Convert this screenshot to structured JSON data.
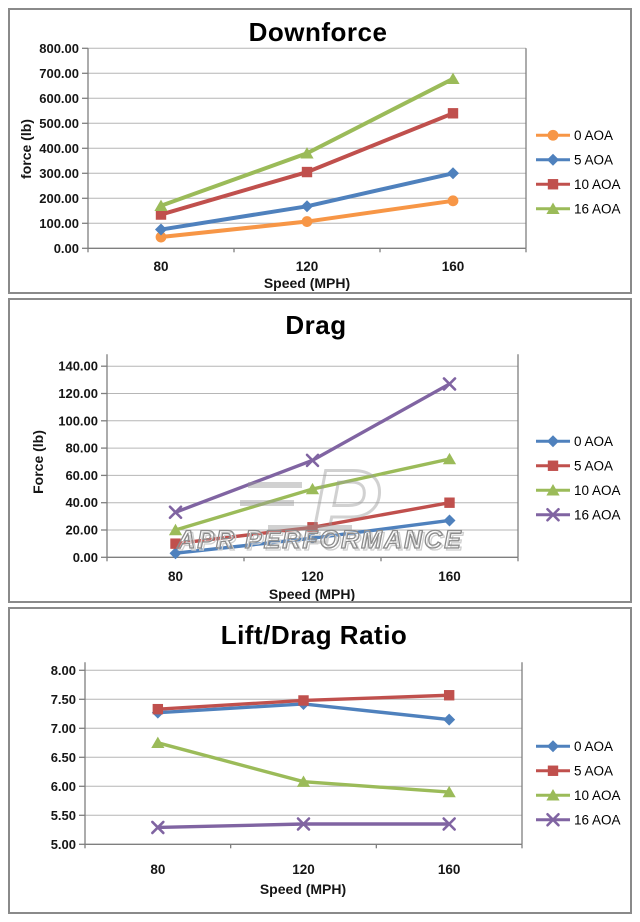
{
  "chart_data": [
    {
      "type": "line",
      "title": "Downforce",
      "ylabel": "force (lb)",
      "xlabel": "Speed (MPH)",
      "categories": [
        "80",
        "120",
        "160"
      ],
      "y_min": 0,
      "y_max": 800,
      "y_step": 100,
      "y_ticks": [
        "0.00",
        "100.00",
        "200.00",
        "300.00",
        "400.00",
        "500.00",
        "600.00",
        "700.00",
        "800.00"
      ],
      "grid": true,
      "legend_position": "right",
      "series": [
        {
          "name": "0 AOA",
          "color": "#F79646",
          "marker": "circle",
          "values": [
            45,
            107,
            190
          ]
        },
        {
          "name": "5 AOA",
          "color": "#4F81BD",
          "marker": "diamond",
          "values": [
            75,
            168,
            300
          ]
        },
        {
          "name": "10 AOA",
          "color": "#C0504D",
          "marker": "square",
          "values": [
            135,
            305,
            540
          ]
        },
        {
          "name": "16 AOA",
          "color": "#9BBB59",
          "marker": "triangle",
          "values": [
            170,
            380,
            678
          ]
        }
      ]
    },
    {
      "type": "line",
      "title": "Drag",
      "ylabel": "Force (lb)",
      "xlabel": "Speed (MPH)",
      "watermark": "APR PERFORMANCE",
      "categories": [
        "80",
        "120",
        "160"
      ],
      "y_min": 0,
      "y_max": 140,
      "y_step": 20,
      "y_ticks": [
        "0.00",
        "20.00",
        "40.00",
        "60.00",
        "80.00",
        "100.00",
        "120.00",
        "140.00"
      ],
      "grid": true,
      "legend_position": "right",
      "series": [
        {
          "name": "0 AOA",
          "color": "#4F81BD",
          "marker": "diamond",
          "values": [
            3,
            14,
            27
          ]
        },
        {
          "name": "5 AOA",
          "color": "#C0504D",
          "marker": "square",
          "values": [
            10,
            22,
            40
          ]
        },
        {
          "name": "10 AOA",
          "color": "#9BBB59",
          "marker": "triangle",
          "values": [
            20,
            50,
            72
          ]
        },
        {
          "name": "16 AOA",
          "color": "#8064A2",
          "marker": "x",
          "values": [
            33,
            71,
            127
          ]
        }
      ]
    },
    {
      "type": "line",
      "title": "Lift/Drag Ratio",
      "xlabel": "Speed (MPH)",
      "categories": [
        "80",
        "120",
        "160"
      ],
      "y_min": 5,
      "y_max": 8,
      "y_step": 0.5,
      "y_ticks": [
        "5.00",
        "5.50",
        "6.00",
        "6.50",
        "7.00",
        "7.50",
        "8.00"
      ],
      "grid": true,
      "legend_position": "right",
      "series": [
        {
          "name": "0 AOA",
          "color": "#4F81BD",
          "marker": "diamond",
          "values": [
            7.27,
            7.42,
            7.15
          ]
        },
        {
          "name": "5 AOA",
          "color": "#C0504D",
          "marker": "square",
          "values": [
            7.33,
            7.48,
            7.57
          ]
        },
        {
          "name": "10 AOA",
          "color": "#9BBB59",
          "marker": "triangle",
          "values": [
            6.75,
            6.08,
            5.9
          ]
        },
        {
          "name": "16 AOA",
          "color": "#8064A2",
          "marker": "x",
          "values": [
            5.29,
            5.35,
            5.35
          ]
        }
      ]
    }
  ]
}
